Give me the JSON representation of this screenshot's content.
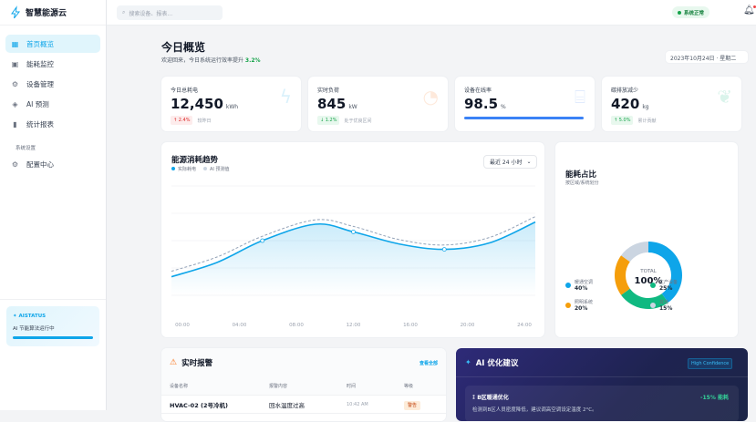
{
  "app": {
    "name": "智慧能源云"
  },
  "sidebar": {
    "items": [
      {
        "label": "首页概览",
        "icon": "dashboard-icon",
        "active": true
      },
      {
        "label": "能耗监控",
        "icon": "monitor-chart-icon"
      },
      {
        "label": "设备管理",
        "icon": "chip-icon"
      },
      {
        "label": "AI 预测",
        "icon": "ai-predict-icon"
      },
      {
        "label": "统计报表",
        "icon": "bar-chart-icon"
      }
    ],
    "section_label": "系统设置",
    "settings_item": {
      "label": "配置中心",
      "icon": "gear-icon"
    },
    "ai_status": {
      "title": "AISTATUS",
      "text": "AI 节能算法运行中",
      "progress": 1.0
    }
  },
  "header": {
    "search_placeholder": "搜索设备、报表...",
    "status": "系统正常"
  },
  "page": {
    "title": "今日概览",
    "subtitle_prefix": "欢迎回来，今日系统运行效率提升 ",
    "subtitle_value": "3.2%",
    "date": "2023年10月24日 · 星期二"
  },
  "kpis": [
    {
      "label": "今日总耗电",
      "value": "12,450",
      "unit": "kWh",
      "badge": "↑ 2.4%",
      "note": "较昨日",
      "icon": "lightning-icon"
    },
    {
      "label": "实时负荷",
      "value": "845",
      "unit": "kW",
      "badge": "↓ 1.2%",
      "note": "处于优良区间",
      "icon": "gauge-icon"
    },
    {
      "label": "设备在线率",
      "value": "98.5",
      "unit": "%",
      "progress": 98.5,
      "icon": "router-icon"
    },
    {
      "label": "碳排放减少",
      "value": "420",
      "unit": "kg",
      "badge": "↑ 5.0%",
      "note": "累计贡献",
      "icon": "leaf-icon"
    }
  ],
  "trend": {
    "title": "能源消耗趋势",
    "range": "最近 24 小时",
    "colors": {
      "actual": "#0ea5e9",
      "forecast": "#94a3b8"
    },
    "chart_data": {
      "type": "line",
      "x_ticks": [
        "00:00",
        "04:00",
        "08:00",
        "12:00",
        "16:00",
        "20:00",
        "24:00"
      ],
      "ylim": [
        0,
        100
      ],
      "grid": true,
      "legend": "top-left",
      "series": [
        {
          "name": "实际耗电",
          "points": [
            [
              0,
              17
            ],
            [
              3,
              30
            ],
            [
              6,
              50
            ],
            [
              9.5,
              65
            ],
            [
              12,
              58
            ],
            [
              15,
              47
            ],
            [
              18,
              42
            ],
            [
              21,
              48
            ],
            [
              24,
              67
            ]
          ],
          "markers": [
            6,
            12,
            18
          ]
        },
        {
          "name": "AI 预测值",
          "points": [
            [
              0,
              22
            ],
            [
              3,
              35
            ],
            [
              6,
              54
            ],
            [
              9.5,
              69
            ],
            [
              12,
              63
            ],
            [
              15,
              51
            ],
            [
              18,
              46
            ],
            [
              21,
              53
            ],
            [
              24,
              72
            ]
          ]
        }
      ]
    }
  },
  "share": {
    "title": "能耗占比",
    "subtitle": "按区域/系统划分",
    "center_label": "TOTAL",
    "center_value": "100%",
    "chart_data": {
      "type": "pie",
      "slices": [
        {
          "name": "暖通空调",
          "value": 40,
          "label": "40%",
          "color": "#0ea5e9"
        },
        {
          "name": "生产设备",
          "value": 25,
          "label": "25%",
          "color": "#10b981"
        },
        {
          "name": "照明系统",
          "value": 20,
          "label": "20%",
          "color": "#f59e0b"
        },
        {
          "name": "其他",
          "value": 15,
          "label": "15%",
          "color": "#cbd5e1"
        }
      ]
    }
  },
  "alerts": {
    "title": "实时报警",
    "view_all": "查看全部",
    "columns": [
      "设备名称",
      "报警内容",
      "时间",
      "等级"
    ],
    "rows": [
      {
        "device": "HVAC-02 (2号冷机)",
        "content": "回水温度过高",
        "time": "10:42 AM",
        "level": "警告"
      }
    ]
  },
  "ai": {
    "title": "AI 优化建议",
    "confidence": "High Confidence",
    "suggestion": {
      "title": "B区暖通优化",
      "result": "-15% 能耗",
      "desc": "检测到B区人员密度降低，建议调高空调设定温度 2°C。"
    }
  }
}
